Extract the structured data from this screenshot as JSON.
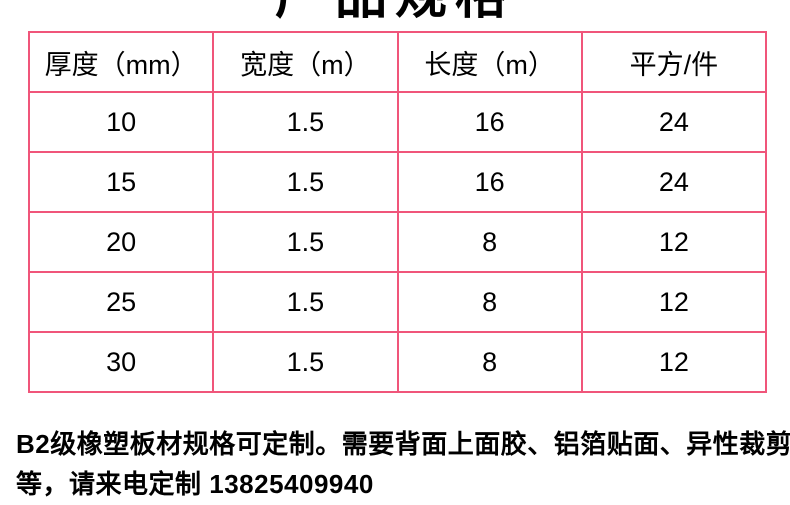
{
  "title": "产品规格",
  "table": {
    "headers": [
      "厚度（mm）",
      "宽度（m）",
      "长度（m）",
      "平方/件"
    ],
    "rows": [
      [
        "10",
        "1.5",
        "16",
        "24"
      ],
      [
        "15",
        "1.5",
        "16",
        "24"
      ],
      [
        "20",
        "1.5",
        "8",
        "12"
      ],
      [
        "25",
        "1.5",
        "8",
        "12"
      ],
      [
        "30",
        "1.5",
        "8",
        "12"
      ]
    ]
  },
  "footer": {
    "line1": "B2级橡塑板材规格可定制。需要背面上面胶、铝箔贴面、异性裁剪",
    "line2_prefix": "等，请来电定制 ",
    "phone": "13825409940"
  },
  "colors": {
    "table_border": "#f0557a",
    "text": "#000000",
    "background": "#ffffff"
  }
}
